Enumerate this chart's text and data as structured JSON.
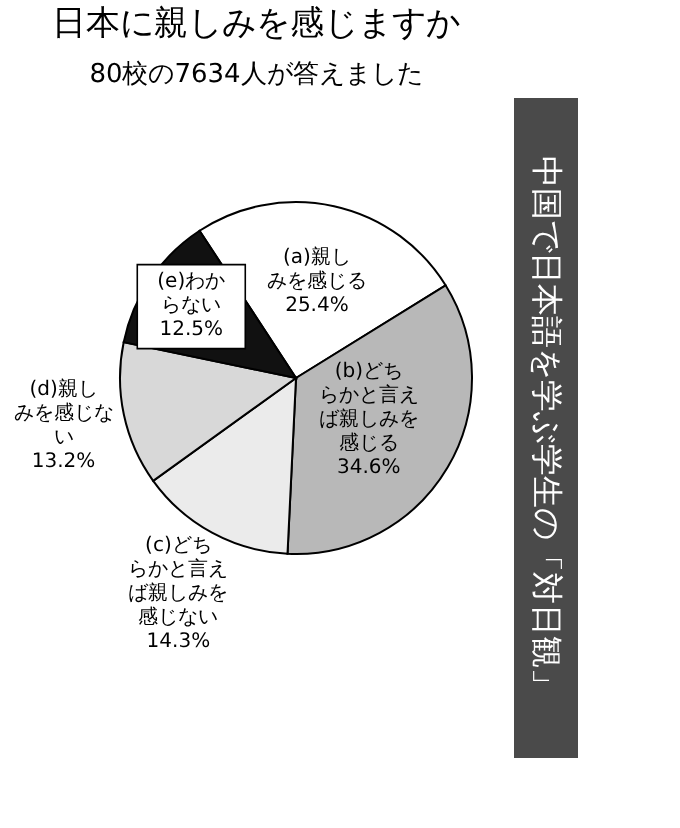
{
  "chart_data": {
    "type": "pie",
    "title": "日本に親しみを感じますか",
    "subtitle": "80校の7634人が答えました",
    "categories": [
      "(a)親しみを感じる",
      "(b)どちらかと言えば親しみを感じる",
      "(c)どちらかと言えば親しみを感じない",
      "(d)親しみを感じない",
      "(e)わからない"
    ],
    "values": [
      25.4,
      34.6,
      14.3,
      13.2,
      12.5
    ],
    "colors": [
      "#ffffff",
      "#b8b8b8",
      "#ebebeb",
      "#d8d8d8",
      "#111111"
    ],
    "value_labels": [
      "25.4%",
      "34.6%",
      "14.3%",
      "13.2%",
      "12.5%"
    ],
    "data_labels": true,
    "annotations": [
      "中国で日本語を学ぶ学生の「対日観」"
    ]
  }
}
